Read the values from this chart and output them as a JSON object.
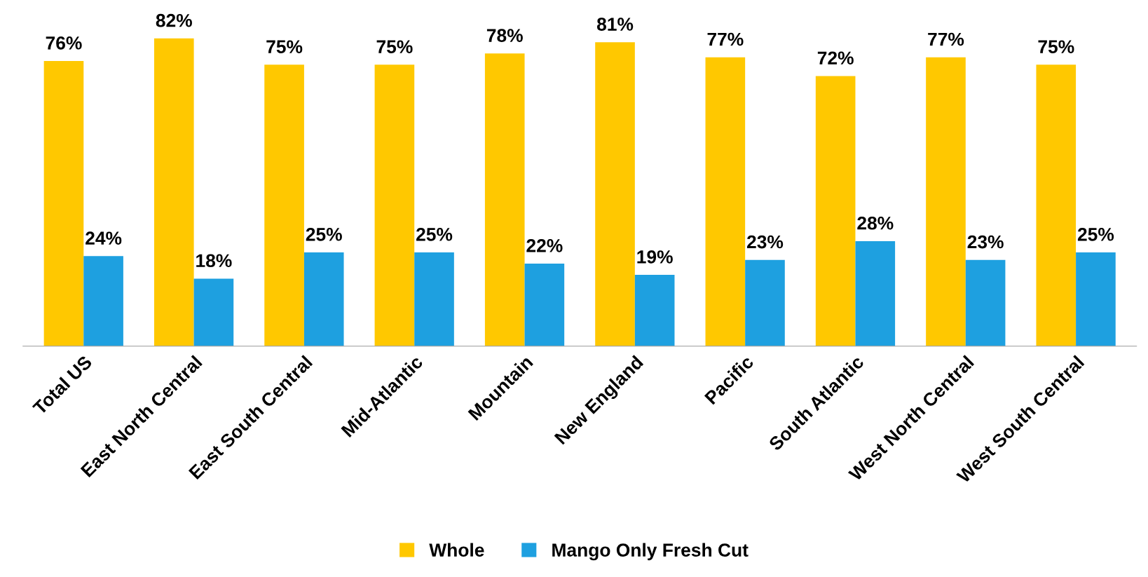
{
  "chart_data": {
    "type": "bar",
    "categories": [
      "Total US",
      "East North Central",
      "East South Central",
      "Mid-Atlantic",
      "Mountain",
      "New England",
      "Pacific",
      "South Atlantic",
      "West North Central",
      "West South Central"
    ],
    "series": [
      {
        "name": "Whole",
        "color": "#ffc800",
        "values": [
          76,
          82,
          75,
          75,
          78,
          81,
          77,
          72,
          77,
          75
        ],
        "value_labels": [
          "76%",
          "82%",
          "75%",
          "75%",
          "78%",
          "81%",
          "77%",
          "72%",
          "77%",
          "75%"
        ]
      },
      {
        "name": "Mango Only Fresh Cut",
        "color": "#1ea0e0",
        "values": [
          24,
          18,
          25,
          25,
          22,
          19,
          23,
          28,
          23,
          25
        ],
        "value_labels": [
          "24%",
          "18%",
          "25%",
          "25%",
          "22%",
          "19%",
          "23%",
          "28%",
          "23%",
          "25%"
        ]
      }
    ],
    "tick_labels": "x",
    "legend": "bottom",
    "grid": false
  }
}
